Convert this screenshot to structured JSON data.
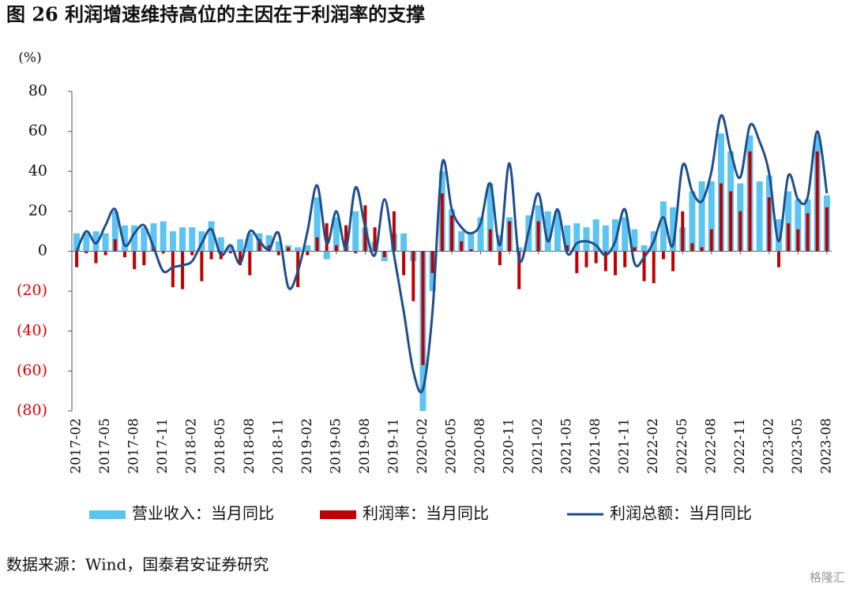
{
  "chart_data": {
    "type": "bar_line",
    "title": "图 26 利润增速维持高位的主因在于利润率的支撑",
    "y_unit": "(%)",
    "source": "数据来源：Wind，国泰君安证券研究",
    "watermark": "格隆汇",
    "categories": [
      "2017-02",
      null,
      null,
      "2017-05",
      null,
      null,
      "2017-08",
      null,
      null,
      "2017-11",
      null,
      null,
      "2018-02",
      null,
      null,
      "2018-05",
      null,
      null,
      "2018-08",
      null,
      null,
      "2018-11",
      null,
      null,
      "2019-02",
      null,
      null,
      "2019-05",
      null,
      null,
      "2019-08",
      null,
      null,
      "2019-11",
      null,
      null,
      "2020-02",
      null,
      null,
      "2020-05",
      null,
      null,
      "2020-08",
      null,
      null,
      "2020-11",
      null,
      null,
      "2021-02",
      null,
      null,
      "2021-05",
      null,
      null,
      "2021-08",
      null,
      null,
      "2021-11",
      null,
      null,
      "2022-02",
      null,
      null,
      "2022-05",
      null,
      null,
      "2022-08",
      null,
      null,
      "2022-11",
      null,
      null,
      "2023-02",
      null,
      null,
      "2023-05",
      null,
      null,
      "2023-08"
    ],
    "series": [
      {
        "name": "营业收入：当月同比",
        "kind": "bar",
        "color": "#5bc4f0",
        "values": [
          9,
          9,
          10,
          9,
          20,
          13,
          13,
          12,
          14,
          15,
          10,
          12,
          12,
          10,
          15,
          7,
          3,
          6,
          9,
          9,
          8,
          5,
          3,
          2,
          3,
          27,
          -4,
          17,
          3,
          20,
          12,
          5,
          -5,
          9,
          9,
          -5,
          -80,
          -20,
          40,
          21,
          10,
          9,
          17,
          34,
          8,
          17,
          2,
          18,
          23,
          20,
          20,
          13,
          14,
          12,
          16,
          13,
          16,
          17,
          11,
          3,
          10,
          25,
          22,
          12,
          30,
          35,
          35,
          59,
          50,
          34,
          58,
          35,
          38,
          16,
          30,
          26,
          26,
          58,
          28
        ]
      },
      {
        "name": "利润率：当月同比",
        "kind": "bar",
        "color": "#c00000",
        "values": [
          -8,
          -1,
          -6,
          -2,
          6,
          -3,
          -9,
          -7,
          2,
          -1,
          -18,
          -19,
          -2,
          -15,
          -4,
          -4,
          -1,
          -7,
          -12,
          6,
          3,
          -2,
          2,
          -18,
          -2,
          7,
          14,
          3,
          13,
          -1,
          23,
          12,
          -3,
          20,
          -12,
          -25,
          -57,
          -11,
          29,
          18,
          5,
          1,
          0,
          11,
          -7,
          15,
          -19,
          0,
          15,
          0,
          0,
          3,
          -11,
          -8,
          -6,
          -10,
          -12,
          -8,
          2,
          -15,
          -16,
          -4,
          -10,
          20,
          4,
          2,
          11,
          34,
          30,
          20,
          50,
          0,
          27,
          -8,
          14,
          11,
          19,
          50,
          22
        ]
      },
      {
        "name": "利润总额：当月同比",
        "kind": "line",
        "color": "#1f4e8c",
        "values": [
          0,
          10,
          4,
          13,
          21,
          3,
          9,
          13,
          2,
          -10,
          -8,
          -7,
          -5,
          4,
          11,
          -2,
          3,
          -6,
          10,
          5,
          1,
          9,
          -18,
          -10,
          10,
          33,
          4,
          20,
          2,
          32,
          12,
          -2,
          26,
          -2,
          -30,
          -60,
          -69,
          -30,
          44,
          21,
          12,
          9,
          14,
          34,
          3,
          44,
          -4,
          10,
          29,
          5,
          21,
          -1,
          4,
          5,
          3,
          -2,
          5,
          21,
          -6,
          -3,
          5,
          17,
          3,
          43,
          30,
          25,
          40,
          68,
          50,
          37,
          63,
          55,
          39,
          5,
          38,
          26,
          27,
          60,
          29
        ]
      }
    ],
    "ylim": [
      -80,
      80
    ],
    "yticks": [
      80,
      60,
      40,
      20,
      0,
      {
        "value": -20,
        "label": "(20)"
      },
      {
        "value": -40,
        "label": "(40)"
      },
      {
        "value": -60,
        "label": "(60)"
      },
      {
        "value": -80,
        "label": "(80)"
      }
    ],
    "negative_tick_color": "#e00000",
    "grid": false
  }
}
